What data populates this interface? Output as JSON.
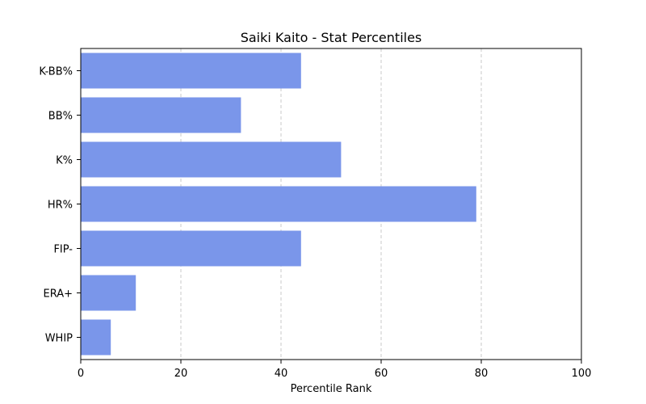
{
  "chart_data": {
    "type": "bar",
    "orientation": "horizontal",
    "title": "Saiki Kaito - Stat Percentiles",
    "xlabel": "Percentile Rank",
    "ylabel": "",
    "categories": [
      "K-BB%",
      "BB%",
      "K%",
      "HR%",
      "FIP-",
      "ERA+",
      "WHIP"
    ],
    "values": [
      44,
      32,
      52,
      79,
      44,
      11,
      6
    ],
    "xlim": [
      0,
      100
    ],
    "xticks": [
      0,
      20,
      40,
      60,
      80,
      100
    ],
    "grid": "x-dashed",
    "bar_color": "#7a96ea"
  }
}
